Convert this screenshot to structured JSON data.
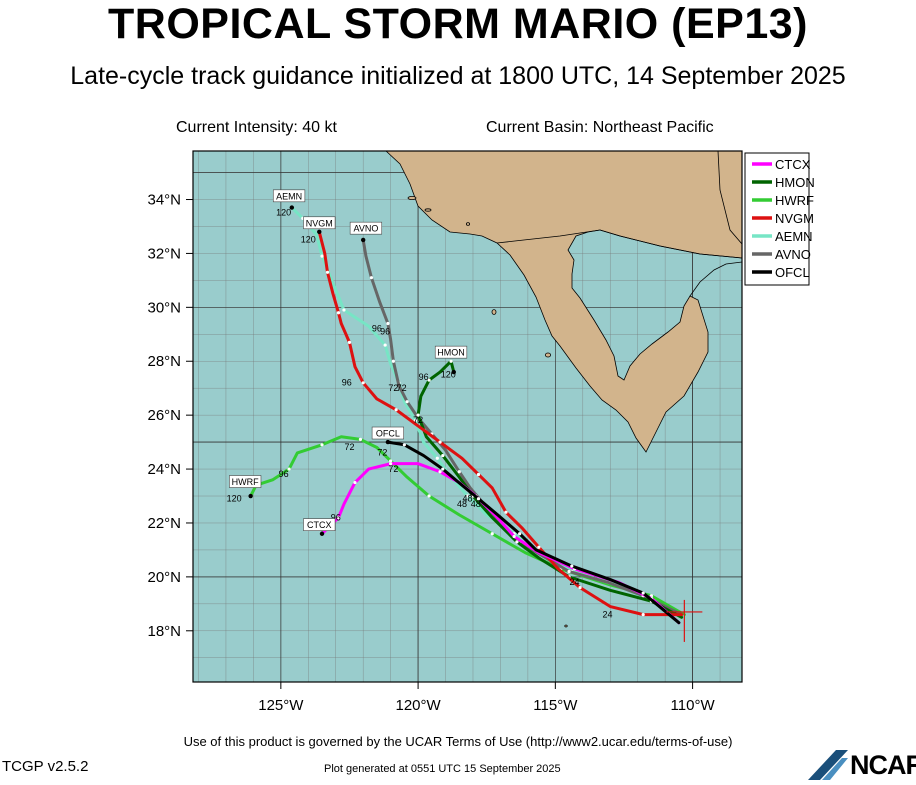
{
  "header": {
    "title": "TROPICAL STORM MARIO (EP13)",
    "subtitle": "Late-cycle track guidance initialized at 1800 UTC, 14 September 2025",
    "intensity": "Current Intensity: 40 kt",
    "basin": "Current Basin: Northeast Pacific"
  },
  "map": {
    "extent": {
      "lon_min": -128.2,
      "lon_max": -108.2,
      "lat_min": 16.1,
      "lat_max": 35.8
    },
    "lat_ticks": [
      {
        "v": 18,
        "label": "18°N"
      },
      {
        "v": 20,
        "label": "20°N"
      },
      {
        "v": 22,
        "label": "22°N"
      },
      {
        "v": 24,
        "label": "24°N"
      },
      {
        "v": 26,
        "label": "26°N"
      },
      {
        "v": 28,
        "label": "28°N"
      },
      {
        "v": 30,
        "label": "30°N"
      },
      {
        "v": 32,
        "label": "32°N"
      },
      {
        "v": 34,
        "label": "34°N"
      }
    ],
    "lon_ticks": [
      {
        "v": -125,
        "label": "125°W"
      },
      {
        "v": -120,
        "label": "120°W"
      },
      {
        "v": -115,
        "label": "115°W"
      },
      {
        "v": -110,
        "label": "110°W"
      }
    ],
    "ocean_color": "#99cccc",
    "land_color": "#d2b48c",
    "current_position": {
      "lon": -110.3,
      "lat": 18.7
    }
  },
  "chart_data": {
    "type": "scatter",
    "title": "TROPICAL STORM MARIO (EP13)",
    "xlabel": "",
    "ylabel": "",
    "xlim": [
      -128.2,
      -108.2
    ],
    "ylim": [
      16.1,
      35.8
    ],
    "series": [
      {
        "name": "CTCX",
        "color": "#ff00ff",
        "points": [
          [
            -110.5,
            18.3
          ],
          [
            -111.5,
            19.2
          ],
          [
            -112.7,
            19.8
          ],
          [
            -114.3,
            20.3
          ],
          [
            -115.6,
            20.9
          ],
          [
            -116.5,
            21.5
          ],
          [
            -117.2,
            22.3
          ],
          [
            -117.9,
            23.0
          ],
          [
            -118.5,
            23.5
          ],
          [
            -119.2,
            23.9
          ],
          [
            -120.0,
            24.2
          ],
          [
            -121.0,
            24.2
          ],
          [
            -121.8,
            24.0
          ],
          [
            -122.3,
            23.5
          ],
          [
            -122.7,
            22.7
          ],
          [
            -122.9,
            22.2
          ],
          [
            -123.5,
            21.6
          ]
        ],
        "labels": [
          {
            "text": "48",
            "lon": -118.2,
            "lat": 22.8
          },
          {
            "text": "72",
            "lon": -120.9,
            "lat": 23.9
          },
          {
            "text": "96",
            "lon": -123.0,
            "lat": 22.1
          }
        ]
      },
      {
        "name": "HMON",
        "color": "#006400",
        "points": [
          [
            -110.4,
            18.5
          ],
          [
            -111.5,
            19.1
          ],
          [
            -113.0,
            19.5
          ],
          [
            -114.5,
            20.0
          ],
          [
            -115.6,
            20.7
          ],
          [
            -116.4,
            21.3
          ],
          [
            -117.3,
            22.2
          ],
          [
            -118.0,
            23.0
          ],
          [
            -118.5,
            23.7
          ],
          [
            -119.1,
            24.5
          ],
          [
            -119.7,
            25.2
          ],
          [
            -120.0,
            26.0
          ],
          [
            -119.9,
            26.7
          ],
          [
            -119.6,
            27.3
          ],
          [
            -119.2,
            27.6
          ],
          [
            -118.8,
            28.0
          ],
          [
            -118.7,
            27.6
          ]
        ],
        "labels": [
          {
            "text": "96",
            "lon": -119.8,
            "lat": 27.3
          },
          {
            "text": "120",
            "lon": -118.9,
            "lat": 27.4
          }
        ]
      },
      {
        "name": "HWRF",
        "color": "#33cc33",
        "points": [
          [
            -110.3,
            18.6
          ],
          [
            -111.5,
            19.3
          ],
          [
            -113.0,
            19.7
          ],
          [
            -114.8,
            20.3
          ],
          [
            -116.1,
            20.9
          ],
          [
            -117.3,
            21.6
          ],
          [
            -118.5,
            22.3
          ],
          [
            -119.6,
            23.0
          ],
          [
            -120.4,
            23.7
          ],
          [
            -121.0,
            24.3
          ],
          [
            -121.5,
            24.8
          ],
          [
            -122.1,
            25.1
          ],
          [
            -122.8,
            25.2
          ],
          [
            -123.5,
            24.9
          ],
          [
            -124.4,
            24.6
          ],
          [
            -124.7,
            24.0
          ],
          [
            -125.3,
            23.6
          ],
          [
            -125.9,
            23.4
          ],
          [
            -126.1,
            23.0
          ]
        ],
        "labels": [
          {
            "text": "48",
            "lon": -118.4,
            "lat": 22.6
          },
          {
            "text": "72",
            "lon": -122.5,
            "lat": 24.7
          },
          {
            "text": "96",
            "lon": -124.9,
            "lat": 23.7
          },
          {
            "text": "120",
            "lon": -126.7,
            "lat": 22.8
          }
        ]
      },
      {
        "name": "NVGM",
        "color": "#dd1111",
        "points": [
          [
            -110.4,
            18.6
          ],
          [
            -111.8,
            18.6
          ],
          [
            -113.0,
            18.9
          ],
          [
            -114.1,
            19.6
          ],
          [
            -114.9,
            20.3
          ],
          [
            -115.6,
            21.1
          ],
          [
            -116.2,
            21.8
          ],
          [
            -116.8,
            22.4
          ],
          [
            -117.3,
            23.3
          ],
          [
            -117.8,
            23.8
          ],
          [
            -118.4,
            24.4
          ],
          [
            -119.2,
            25.0
          ],
          [
            -120.0,
            25.6
          ],
          [
            -120.8,
            26.2
          ],
          [
            -121.5,
            26.6
          ],
          [
            -122.0,
            27.2
          ],
          [
            -122.3,
            27.8
          ],
          [
            -122.5,
            28.7
          ],
          [
            -122.8,
            29.4
          ],
          [
            -122.9,
            29.8
          ],
          [
            -123.1,
            30.5
          ],
          [
            -123.3,
            31.3
          ],
          [
            -123.4,
            32.0
          ],
          [
            -123.6,
            32.8
          ]
        ],
        "labels": [
          {
            "text": "24",
            "lon": -113.1,
            "lat": 18.5
          },
          {
            "text": "72",
            "lon": -120.0,
            "lat": 25.7
          },
          {
            "text": "96",
            "lon": -122.6,
            "lat": 27.1
          },
          {
            "text": "120",
            "lon": -124.0,
            "lat": 32.4
          }
        ]
      },
      {
        "name": "AEMN",
        "color": "#77e5c5",
        "points": [
          [
            -110.3,
            18.5
          ],
          [
            -111.4,
            19.1
          ],
          [
            -112.8,
            19.7
          ],
          [
            -114.4,
            20.2
          ],
          [
            -115.6,
            20.9
          ],
          [
            -116.5,
            21.6
          ],
          [
            -117.5,
            22.3
          ],
          [
            -118.2,
            23.0
          ],
          [
            -118.8,
            23.7
          ],
          [
            -119.3,
            24.4
          ],
          [
            -119.8,
            25.0
          ],
          [
            -120.1,
            25.8
          ],
          [
            -120.5,
            26.5
          ],
          [
            -120.7,
            27.2
          ],
          [
            -121.0,
            27.9
          ],
          [
            -121.2,
            28.6
          ],
          [
            -121.8,
            29.3
          ],
          [
            -122.7,
            29.9
          ],
          [
            -123.1,
            30.9
          ],
          [
            -123.5,
            31.9
          ],
          [
            -123.7,
            32.7
          ],
          [
            -124.2,
            33.3
          ],
          [
            -124.6,
            33.7
          ]
        ],
        "labels": [
          {
            "text": "72",
            "lon": -120.9,
            "lat": 26.9
          },
          {
            "text": "96",
            "lon": -121.5,
            "lat": 29.1
          },
          {
            "text": "120",
            "lon": -124.9,
            "lat": 33.4
          }
        ]
      },
      {
        "name": "AVNO",
        "color": "#666666",
        "points": [
          [
            -110.4,
            18.6
          ],
          [
            -111.8,
            19.3
          ],
          [
            -113.1,
            19.8
          ],
          [
            -114.5,
            20.2
          ],
          [
            -115.5,
            20.8
          ],
          [
            -116.3,
            21.3
          ],
          [
            -117.0,
            22.0
          ],
          [
            -117.6,
            22.7
          ],
          [
            -118.1,
            23.3
          ],
          [
            -118.5,
            23.9
          ],
          [
            -119.0,
            24.7
          ],
          [
            -119.5,
            25.3
          ],
          [
            -120.0,
            25.9
          ],
          [
            -120.4,
            26.5
          ],
          [
            -120.7,
            27.1
          ],
          [
            -120.9,
            28.0
          ],
          [
            -121.0,
            28.8
          ],
          [
            -121.1,
            29.4
          ],
          [
            -121.4,
            30.2
          ],
          [
            -121.7,
            31.1
          ],
          [
            -121.9,
            31.9
          ],
          [
            -122.0,
            32.5
          ]
        ],
        "labels": [
          {
            "text": "72",
            "lon": -120.6,
            "lat": 26.9
          },
          {
            "text": "96",
            "lon": -121.2,
            "lat": 29.0
          }
        ]
      },
      {
        "name": "OFCL",
        "color": "#000000",
        "points": [
          [
            -110.5,
            18.3
          ],
          [
            -111.8,
            19.4
          ],
          [
            -113.0,
            19.9
          ],
          [
            -114.4,
            20.4
          ],
          [
            -115.7,
            21.0
          ],
          [
            -116.3,
            21.6
          ],
          [
            -117.1,
            22.3
          ],
          [
            -117.8,
            22.9
          ],
          [
            -118.4,
            23.4
          ],
          [
            -119.1,
            24.0
          ],
          [
            -119.8,
            24.5
          ],
          [
            -120.5,
            24.9
          ],
          [
            -121.1,
            25.0
          ]
        ],
        "labels": [
          {
            "text": "24",
            "lon": -114.3,
            "lat": 19.7
          },
          {
            "text": "48",
            "lon": -117.9,
            "lat": 22.6
          },
          {
            "text": "72",
            "lon": -121.3,
            "lat": 24.5
          }
        ]
      }
    ],
    "legend_position": "top-right",
    "track_tags": [
      {
        "text": "AEMN",
        "lon": -124.7,
        "lat": 34.1
      },
      {
        "text": "NVGM",
        "lon": -123.6,
        "lat": 33.1
      },
      {
        "text": "AVNO",
        "lon": -121.9,
        "lat": 32.9
      },
      {
        "text": "HMON",
        "lon": -118.8,
        "lat": 28.3
      },
      {
        "text": "OFCL",
        "lon": -121.1,
        "lat": 25.3
      },
      {
        "text": "HWRF",
        "lon": -126.3,
        "lat": 23.5
      },
      {
        "text": "CTCX",
        "lon": -123.6,
        "lat": 21.9
      }
    ]
  },
  "footer": {
    "terms": "Use of this product is governed by the UCAR Terms of Use (http://www2.ucar.edu/terms-of-use)",
    "version": "TCGP v2.5.2",
    "generated": "Plot generated at 0551 UTC   15 September 2025",
    "logo": "NCAR"
  }
}
